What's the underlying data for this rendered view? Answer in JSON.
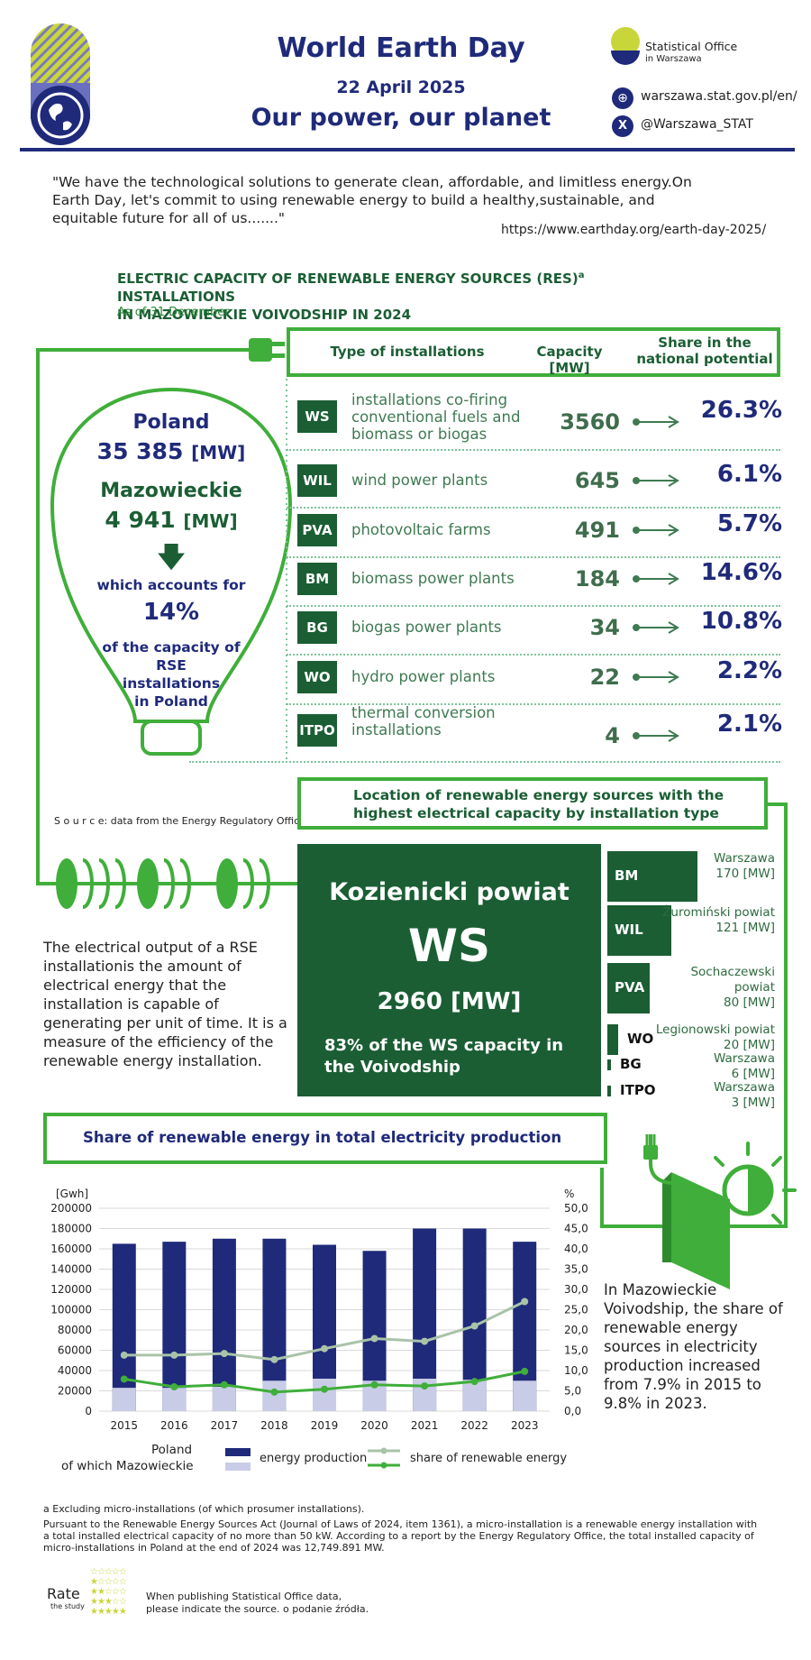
{
  "header": {
    "title": "World Earth Day",
    "date": "22 April 2025",
    "subtitle": "Our power, our planet",
    "org_name_line1": "Statistical Office",
    "org_name_line2": "in Warszawa",
    "website": "warszawa.stat.gov.pl/en/",
    "twitter": "@Warszawa_STAT"
  },
  "quote": {
    "text": "\"We have the technological solutions to generate clean, affordable, and limitless energy.On Earth Day, let's commit to using renewable energy to build a healthy,sustainable, and equitable future for all of us.......\"",
    "source": "https://www.earthday.org/earth-day-2025/"
  },
  "capacity_section": {
    "title_line1": "ELECTRIC CAPACITY OF RENEWABLE ENERGY SOURCES (RES)",
    "title_sup": "a",
    "title_line1_end": " INSTALLATIONS",
    "title_line2": "IN MAZOWIECKIE VOIVODSHIP IN 2024",
    "as_of": "As of 31 December",
    "col_type": "Type of installations",
    "col_capacity": "Capacity [MW]",
    "col_share": "Share in the national potential",
    "rows": [
      {
        "code": "WS",
        "name": "installations co-firing conventional fuels and biomass or biogas",
        "capacity": "3560",
        "share": "26.3%"
      },
      {
        "code": "WIL",
        "name": "wind power plants",
        "capacity": "645",
        "share": "6.1%"
      },
      {
        "code": "PVA",
        "name": "photovoltaic farms",
        "capacity": "491",
        "share": "5.7%"
      },
      {
        "code": "BM",
        "name": "biomass power plants",
        "capacity": "184",
        "share": "14.6%"
      },
      {
        "code": "BG",
        "name": "biogas power plants",
        "capacity": "34",
        "share": "10.8%"
      },
      {
        "code": "WO",
        "name": "hydro power plants",
        "capacity": "22",
        "share": "2.2%"
      },
      {
        "code": "ITPO",
        "name": "thermal conversion installations",
        "capacity": "4",
        "share": "2.1%"
      }
    ],
    "source": "S o u r c e: data from the Energy Regulatory Office."
  },
  "bulb": {
    "country": "Poland",
    "country_value": "35 385",
    "unit": "[MW]",
    "region": "Mazowieckie",
    "region_value": "4 941",
    "accounts_for": "which accounts for",
    "percent": "14%",
    "line1": "of the capacity of",
    "line2": "RSE",
    "line3": "installations",
    "line4": "in Poland"
  },
  "location": {
    "title_line1": "Location of renewable energy sources with the",
    "title_line2": "highest electrical capacity by installation type",
    "main_place": "Kozienicki powiat",
    "main_code": "WS",
    "main_value": "2960 [MW]",
    "main_note_line1": "83% of the WS capacity in",
    "main_note_line2": "the Voivodship",
    "items": [
      {
        "code": "BM",
        "place": "Warszawa",
        "value": "170 [MW]",
        "mw": 170
      },
      {
        "code": "WIL",
        "place": "Żuromiński powiat",
        "value": "121 [MW]",
        "mw": 121
      },
      {
        "code": "PVA",
        "place": "Sochaczewski powiat",
        "value": "80 [MW]",
        "mw": 80
      },
      {
        "code": "WO",
        "place": "Legionowski powiat",
        "value": "20 [MW]",
        "mw": 20
      },
      {
        "code": "BG",
        "place": "Warszawa",
        "value": "6 [MW]",
        "mw": 6
      },
      {
        "code": "ITPO",
        "place": "Warszawa",
        "value": "3 [MW]",
        "mw": 3
      }
    ]
  },
  "description": "The electrical output of a RSE installationis the amount of electrical energy that the installation is capable of generating per unit of time. It is a measure of the efficiency of the renewable energy installation.",
  "share_section": {
    "title": "Share of renewable energy in total electricity production",
    "note": "In Mazowieckie Voivodship, the share of renewable energy sources in electricity production increased from 7.9% in 2015 to 9.8% in 2023."
  },
  "chart_data": {
    "type": "bar",
    "title": "Share of renewable energy in total electricity production",
    "y_left_label": "[Gwh]",
    "y_right_label": "%",
    "ylim_left": [
      0,
      200000
    ],
    "ylim_right": [
      0,
      50
    ],
    "left_ticks": [
      "200000",
      "180000",
      "160000",
      "140000",
      "120000",
      "100000",
      "80000",
      "60000",
      "40000",
      "20000",
      "0"
    ],
    "right_ticks": [
      "50,0",
      "45,0",
      "40,0",
      "35,0",
      "30,0",
      "25,0",
      "20,0",
      "15,0",
      "10,0",
      "5,0",
      "0,0"
    ],
    "categories": [
      "2015",
      "2016",
      "2017",
      "2018",
      "2019",
      "2020",
      "2021",
      "2022",
      "2023"
    ],
    "series": [
      {
        "name": "Poland energy production",
        "axis": "left",
        "color": "#1f2a7a",
        "values": [
          165000,
          167000,
          170000,
          170000,
          164000,
          158000,
          180000,
          180000,
          167000
        ]
      },
      {
        "name": "of which Mazowieckie energy production",
        "axis": "left",
        "color": "#c8cce6",
        "values": [
          23000,
          23000,
          24000,
          30000,
          32000,
          30000,
          32000,
          31000,
          30000
        ]
      },
      {
        "name": "Poland share of renewable energy",
        "axis": "right",
        "color": "#a9c3a9",
        "values": [
          13.8,
          13.8,
          14.2,
          12.7,
          15.4,
          17.9,
          17.2,
          21.0,
          27.0
        ]
      },
      {
        "name": "of which Mazowieckie share of renewable energy",
        "axis": "right",
        "color": "#3fae3a",
        "values": [
          7.9,
          6.0,
          6.5,
          4.7,
          5.4,
          6.5,
          6.2,
          7.3,
          9.8
        ]
      }
    ],
    "legend": {
      "row1": "Poland",
      "row2": "of which Mazowieckie",
      "production": "energy production",
      "share": "share of renewable energy"
    }
  },
  "footer": {
    "note_a": "a Excluding micro-installations (of which prosumer installations).",
    "note_body": "Pursuant to the Renewable Energy Sources Act (Journal of Laws of 2024, item 1361), a micro-installation is a renewable energy installation with a total installed electrical capacity of no more than 50 kW. According to a report by the Energy Regulatory Office, the total installed capacity of micro-installations in Poland at the end of 2024 was 12,749.891 MW.",
    "rate": "Rate",
    "rate_sub": "the study",
    "publish_line1": "When publishing Statistical Office data,",
    "publish_line2": "please indicate the source. o podanie źródła."
  },
  "colors": {
    "navy": "#1f2a7a",
    "dark_green": "#1b5e34",
    "light_green": "#3fae3a",
    "lilac": "#c8cce6"
  }
}
